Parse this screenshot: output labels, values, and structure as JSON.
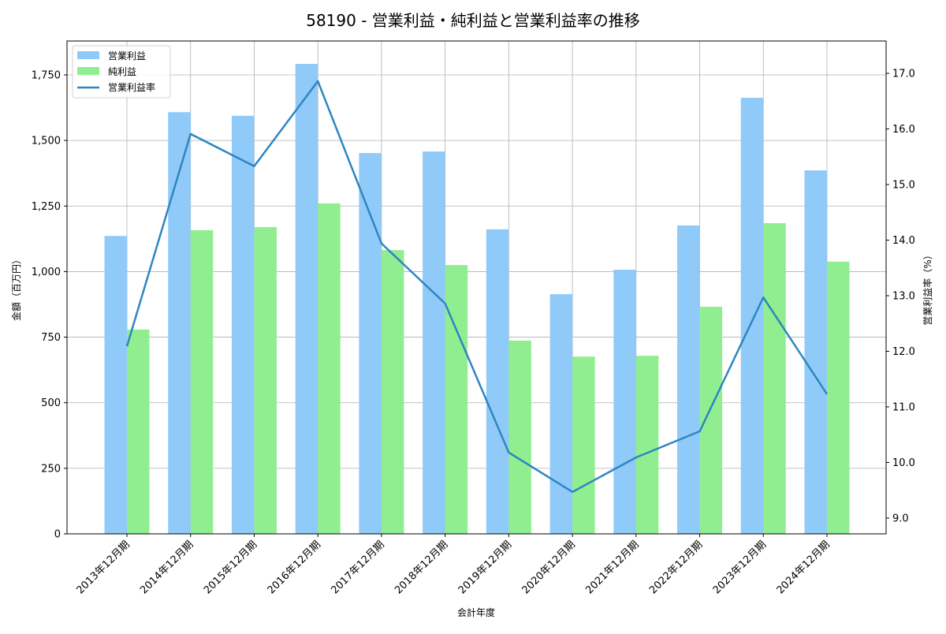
{
  "chart_data": {
    "type": "bar",
    "title": "58190 - 営業利益・純利益と営業利益率の推移",
    "xlabel": "会計年度",
    "ylabel": "金額（百万円）",
    "y2label": "営業利益率（%）",
    "ylim": [
      0,
      1880
    ],
    "y2lim": [
      8.7,
      17.6
    ],
    "yticks": [
      0,
      250,
      500,
      750,
      1000,
      1250,
      1500,
      1750
    ],
    "ytick_labels": [
      "0",
      "250",
      "500",
      "750",
      "1,000",
      "1,250",
      "1,500",
      "1,750"
    ],
    "y2ticks": [
      9.0,
      10.0,
      11.0,
      12.0,
      13.0,
      14.0,
      15.0,
      16.0,
      17.0
    ],
    "y2tick_labels": [
      "9.0",
      "10.0",
      "11.0",
      "12.0",
      "13.0",
      "14.0",
      "15.0",
      "16.0",
      "17.0"
    ],
    "grid": true,
    "legend_position": "upper left",
    "categories": [
      "2013年12月期",
      "2014年12月期",
      "2015年12月期",
      "2016年12月期",
      "2017年12月期",
      "2018年12月期",
      "2019年12月期",
      "2020年12月期",
      "2021年12月期",
      "2022年12月期",
      "2023年12月期",
      "2024年12月期"
    ],
    "series": [
      {
        "name": "営業利益",
        "type": "bar",
        "axis": "left",
        "color": "#90CAF9",
        "values": [
          1136,
          1608,
          1594,
          1792,
          1452,
          1458,
          1161,
          914,
          1007,
          1176,
          1663,
          1386
        ]
      },
      {
        "name": "純利益",
        "type": "bar",
        "axis": "left",
        "color": "#90EE90",
        "values": [
          779,
          1158,
          1170,
          1260,
          1082,
          1025,
          737,
          676,
          679,
          866,
          1185,
          1038
        ]
      },
      {
        "name": "営業利益率",
        "type": "line",
        "axis": "right",
        "color": "#2E86C1",
        "values": [
          12.09,
          15.91,
          15.33,
          16.86,
          13.94,
          12.86,
          10.18,
          9.47,
          10.09,
          10.56,
          12.97,
          11.23
        ]
      }
    ]
  }
}
